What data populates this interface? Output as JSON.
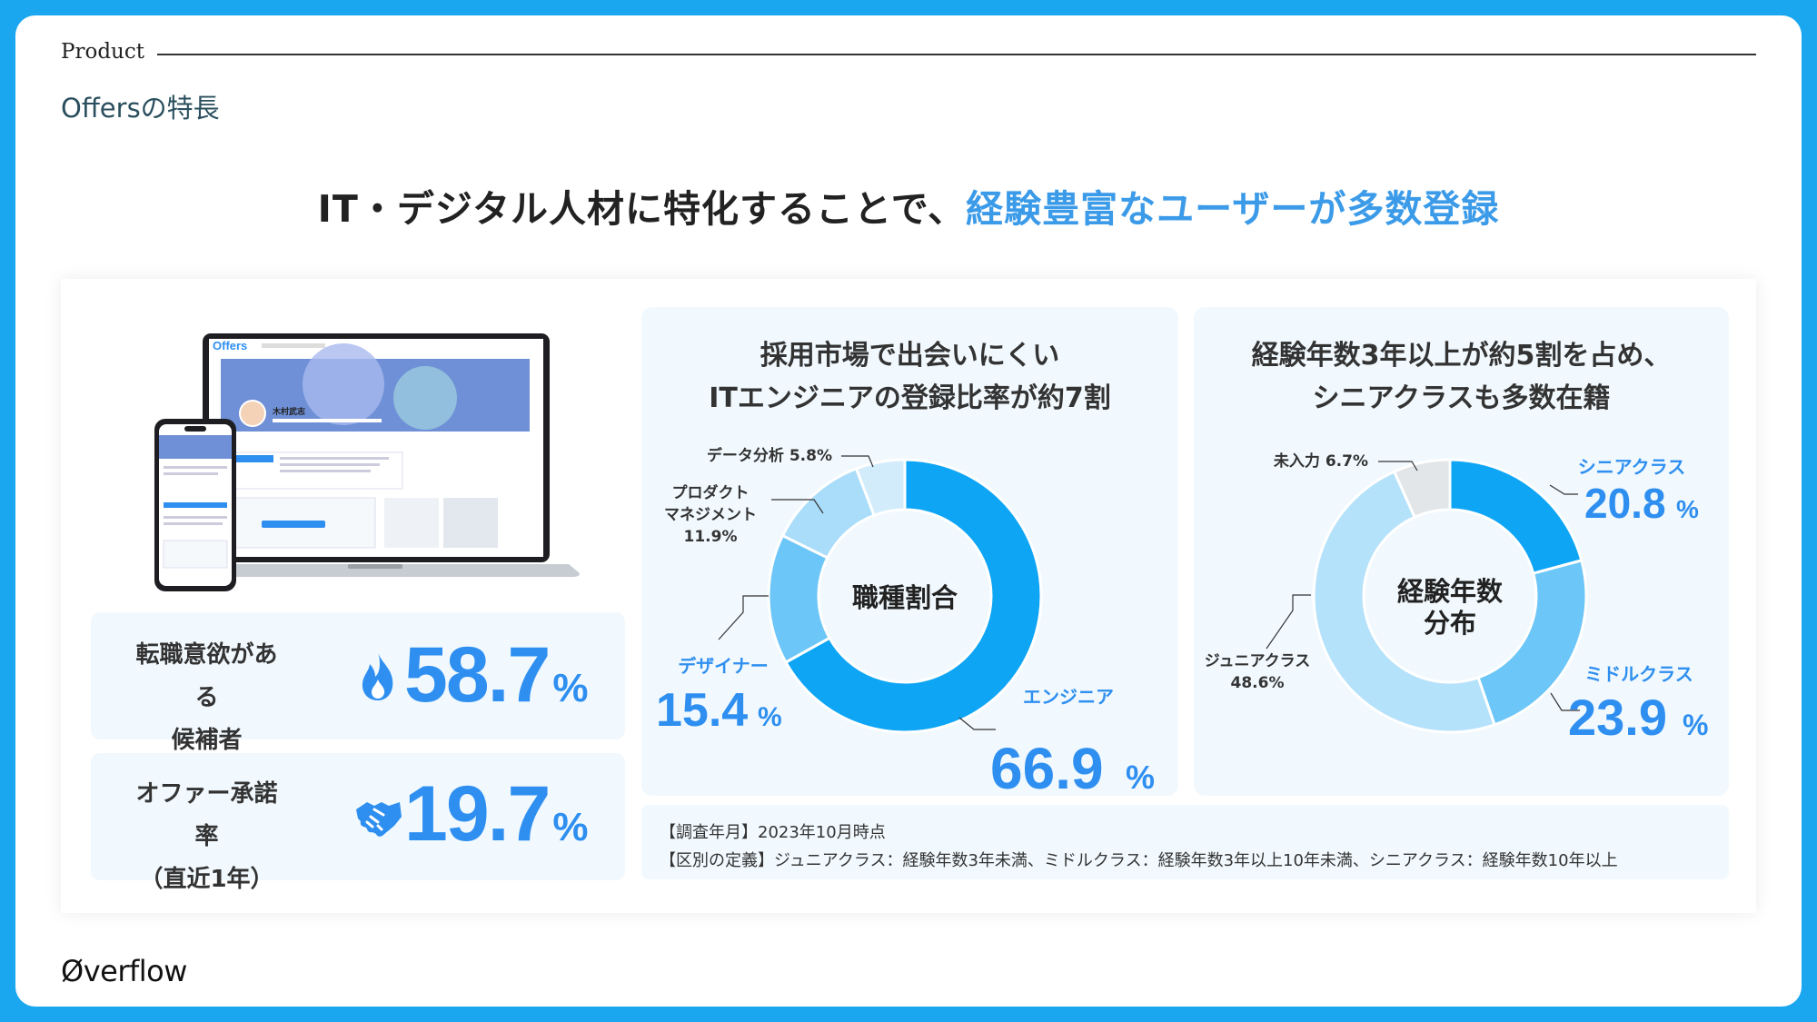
{
  "header": {
    "section": "Product",
    "subtitle": "Offersの特長"
  },
  "headline": {
    "main": "IT・デジタル人材に特化することで、",
    "accent": "経験豊富なユーザーが多数登録"
  },
  "mockup": {
    "app_logo": "Offers",
    "profile_name": "木村武志"
  },
  "stats": [
    {
      "label_line1": "転職意欲がある",
      "label_line2": "候補者",
      "value": "58.7",
      "unit": "%",
      "icon": "flame-icon"
    },
    {
      "label_line1": "オファー承諾率",
      "label_line2": "（直近1年）",
      "value": "19.7",
      "unit": "%",
      "icon": "handshake-icon"
    }
  ],
  "chart_data": [
    {
      "type": "pie",
      "title": "採用市場で出会いにくい ITエンジニアの登録比率が約7割",
      "center_label": "職種割合",
      "slices": [
        {
          "label": "エンジニア",
          "value": 66.9,
          "color": "#0ea5f5"
        },
        {
          "label": "デザイナー",
          "value": 15.4,
          "color": "#6cc6f7"
        },
        {
          "label": "プロダクトマネジメント",
          "value": 11.9,
          "color": "#a9ddfa"
        },
        {
          "label": "データ分析",
          "value": 5.8,
          "color": "#d2ecfc"
        }
      ]
    },
    {
      "type": "pie",
      "title": "経験年数3年以上が約5割を占め、シニアクラスも多数在籍",
      "center_label": "経験年数分布",
      "slices": [
        {
          "label": "シニアクラス",
          "value": 20.8,
          "color": "#0ea5f5"
        },
        {
          "label": "ミドルクラス",
          "value": 23.9,
          "color": "#6cc6f7"
        },
        {
          "label": "ジュニアクラス",
          "value": 48.6,
          "color": "#b5e2fb"
        },
        {
          "label": "未入力",
          "value": 6.7,
          "color": "#e2e6e9"
        }
      ]
    }
  ],
  "chart_text": {
    "c1_title1": "採用市場で出会いにくい",
    "c1_title2": "ITエンジニアの登録比率が約7割",
    "c1_center": "職種割合",
    "c1_data": "データ分析 5.8%",
    "c1_pm1": "プロダクト",
    "c1_pm2": "マネジメント",
    "c1_pm3": "11.9%",
    "c1_designer": "デザイナー",
    "c1_designer_val": "15.4",
    "c1_engineer": "エンジニア",
    "c1_engineer_val": "66.9",
    "c2_title1": "経験年数3年以上が約5割を占め、",
    "c2_title2": "シニアクラスも多数在籍",
    "c2_center1": "経験年数",
    "c2_center2": "分布",
    "c2_none": "未入力 6.7%",
    "c2_junior1": "ジュニアクラス",
    "c2_junior2": "48.6%",
    "c2_senior": "シニアクラス",
    "c2_senior_val": "20.8",
    "c2_middle": "ミドルクラス",
    "c2_middle_val": "23.9",
    "pct": "%"
  },
  "notes": {
    "line1": "【調査年月】2023年10月時点",
    "line2": "【区別の定義】ジュニアクラス：経験年数3年未満、ミドルクラス：経験年数3年以上10年未満、シニアクラス：経験年数10年以上"
  },
  "footer": {
    "logo": "Øverflow"
  },
  "colors": {
    "accent": "#3c9be8",
    "stat_blue": "#2f8ff0",
    "frame": "#1aa7ef",
    "card_bg": "#f1f9fe"
  }
}
